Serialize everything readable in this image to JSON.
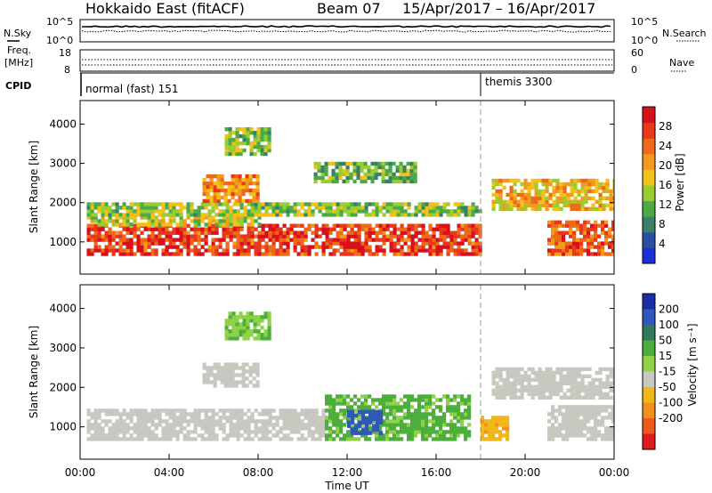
{
  "header": {
    "station": "Hokkaido East (fitACF)",
    "beam": "Beam 07",
    "date_range": "15/Apr/2017 – 16/Apr/2017"
  },
  "panels": {
    "nsky_label": "N.Sky",
    "nsky_ticks": [
      "10^5",
      "10^0"
    ],
    "nsearch_label": "N.Search",
    "freq_label_1": "Freq.",
    "freq_label_2": "[MHz]",
    "freq_ticks": [
      "18",
      "8"
    ],
    "nave_ticks": [
      "60",
      "0"
    ],
    "nave_label": "Nave",
    "cpid_label": "CPID",
    "cpid_entries": [
      {
        "name": "normal (fast) 151",
        "start_hour": 0
      },
      {
        "name": "themis 3300",
        "start_hour": 18
      }
    ]
  },
  "chart_data": [
    {
      "type": "heatmap",
      "quantity": "power",
      "ylabel": "Slant Range [km]",
      "xlabel": "",
      "y_ticks": [
        1000,
        2000,
        3000,
        4000
      ],
      "ylim": [
        180,
        4600
      ],
      "xlim_hours": [
        0,
        24
      ],
      "colorbar_label": "Power [dB]",
      "colorbar_ticks": [
        4,
        8,
        12,
        16,
        20,
        24,
        28
      ],
      "colorbar_range": [
        0,
        32
      ],
      "colorbar_colors": [
        "#1f2fd8",
        "#2a4fa0",
        "#3a7f6a",
        "#4caa46",
        "#9acd32",
        "#f2c21b",
        "#f29a1b",
        "#ee6a1b",
        "#e8381b",
        "#d8101b"
      ],
      "echo_regions": [
        {
          "t0": 0.3,
          "t1": 18,
          "r0": 650,
          "r1": 1400,
          "level": 27
        },
        {
          "t0": 0.3,
          "t1": 8,
          "r0": 1400,
          "r1": 1650,
          "level": 16
        },
        {
          "t0": 0.3,
          "t1": 18,
          "r0": 1650,
          "r1": 1950,
          "level": 14
        },
        {
          "t0": 5.5,
          "t1": 8,
          "r0": 2000,
          "r1": 2700,
          "level": 22
        },
        {
          "t0": 10.5,
          "t1": 15,
          "r0": 2500,
          "r1": 3000,
          "level": 12
        },
        {
          "t0": 6.5,
          "t1": 8.5,
          "r0": 3200,
          "r1": 3900,
          "level": 14
        },
        {
          "t0": 18.5,
          "t1": 24,
          "r0": 1800,
          "r1": 2600,
          "level": 19
        },
        {
          "t0": 21,
          "t1": 24,
          "r0": 650,
          "r1": 1500,
          "level": 25
        }
      ]
    },
    {
      "type": "heatmap",
      "quantity": "velocity",
      "ylabel": "Slant Range [km]",
      "xlabel": "Time UT",
      "x_ticks": [
        "00:00",
        "04:00",
        "08:00",
        "12:00",
        "16:00",
        "20:00",
        "00:00"
      ],
      "y_ticks": [
        1000,
        2000,
        3000,
        4000
      ],
      "ylim": [
        180,
        4600
      ],
      "xlim_hours": [
        0,
        24
      ],
      "colorbar_label": "Velocity [m s⁻¹]",
      "colorbar_ticks": [
        "200",
        "100",
        "50",
        "15",
        "-15",
        "-50",
        "-100",
        "-200"
      ],
      "colorbar_colors": [
        "#1a2ea8",
        "#2f58b8",
        "#2f7a5a",
        "#4caf3c",
        "#8fd24a",
        "#c8c8c0",
        "#f2b81b",
        "#f2901b",
        "#ee5a1b",
        "#e01b1b"
      ],
      "echo_regions": [
        {
          "t0": 0.3,
          "t1": 11,
          "r0": 650,
          "r1": 1400,
          "v": 0
        },
        {
          "t0": 11,
          "t1": 17.5,
          "r0": 650,
          "r1": 1800,
          "v": 40
        },
        {
          "t0": 12,
          "t1": 13.5,
          "r0": 800,
          "r1": 1400,
          "v": 120
        },
        {
          "t0": 5.5,
          "t1": 8,
          "r0": 2000,
          "r1": 2600,
          "v": 0
        },
        {
          "t0": 6.5,
          "t1": 8.5,
          "r0": 3200,
          "r1": 3900,
          "v": 30
        },
        {
          "t0": 18,
          "t1": 19.2,
          "r0": 650,
          "r1": 1250,
          "v": -40
        },
        {
          "t0": 18.5,
          "t1": 24,
          "r0": 1700,
          "r1": 2500,
          "v": 0
        },
        {
          "t0": 21,
          "t1": 24,
          "r0": 650,
          "r1": 1500,
          "v": 0
        }
      ]
    }
  ]
}
